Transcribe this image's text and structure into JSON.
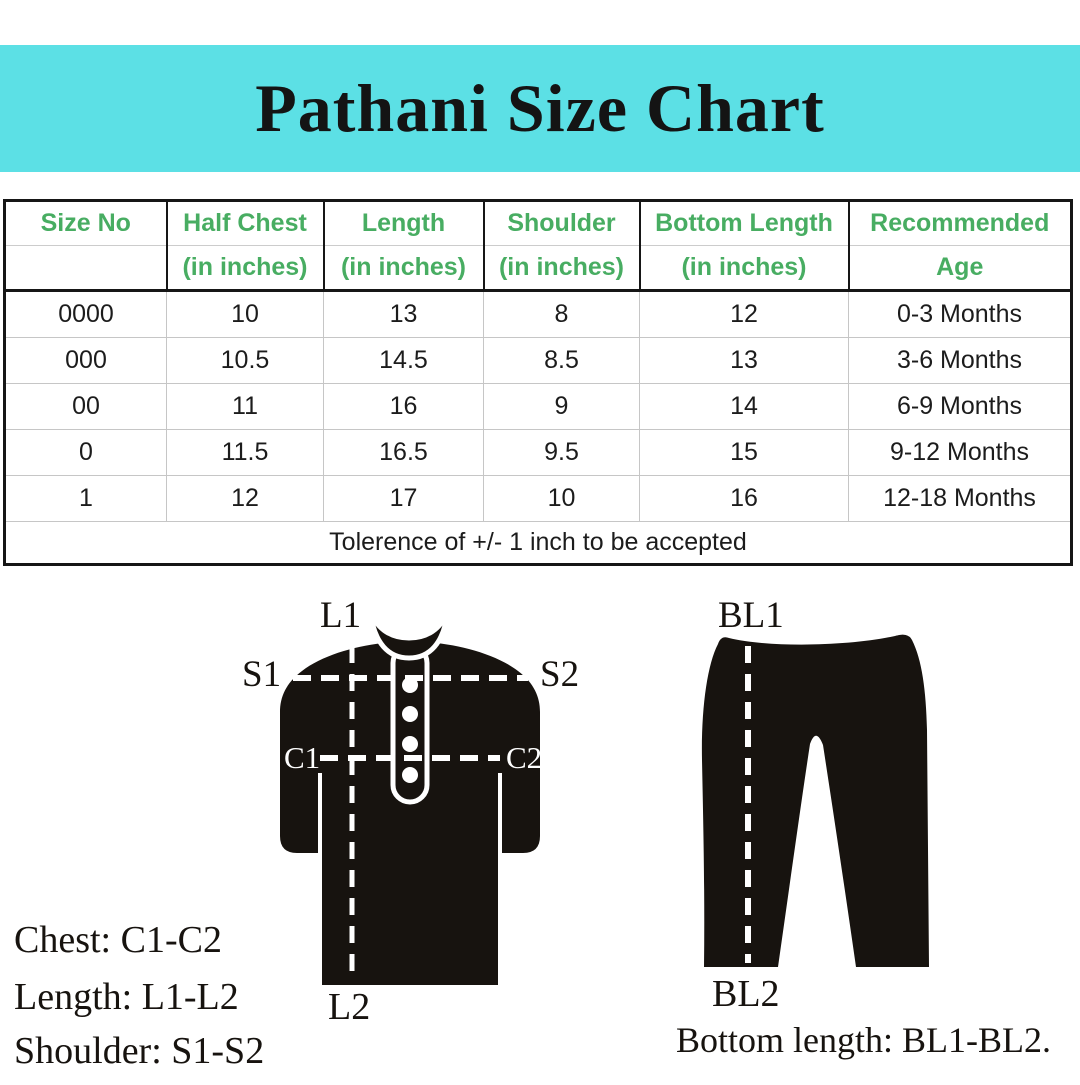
{
  "title": "Pathani Size Chart",
  "theme": {
    "banner_bg": "#5CE0E5",
    "header_text_color": "#48AD62",
    "garment_color": "#17130f",
    "table_dark_border": "#161616",
    "table_light_border": "#c6c6c6"
  },
  "table": {
    "columns": [
      {
        "line1": "Size No",
        "line2": ""
      },
      {
        "line1": "Half Chest",
        "line2": "(in inches)"
      },
      {
        "line1": "Length",
        "line2": "(in inches)"
      },
      {
        "line1": "Shoulder",
        "line2": "(in inches)"
      },
      {
        "line1": "Bottom Length",
        "line2": "(in inches)"
      },
      {
        "line1": "Recommended",
        "line2": "Age"
      }
    ],
    "rows": [
      [
        "0000",
        "10",
        "13",
        "8",
        "12",
        "0-3 Months"
      ],
      [
        "000",
        "10.5",
        "14.5",
        "8.5",
        "13",
        "3-6 Months"
      ],
      [
        "00",
        "11",
        "16",
        "9",
        "14",
        "6-9 Months"
      ],
      [
        "0",
        "11.5",
        "16.5",
        "9.5",
        "15",
        "9-12 Months"
      ],
      [
        "1",
        "12",
        "17",
        "10",
        "16",
        "12-18 Months"
      ]
    ],
    "tolerance_note": "Tolerence of +/- 1 inch to be accepted"
  },
  "diagram": {
    "kurta_labels": {
      "l1": "L1",
      "s1": "S1",
      "s2": "S2",
      "c1": "C1",
      "c2": "C2",
      "l2": "L2"
    },
    "pants_labels": {
      "bl1": "BL1",
      "bl2": "BL2"
    },
    "legend": {
      "chest": "Chest: C1-C2",
      "length": "Length: L1-L2",
      "shoulder": "Shoulder: S1-S2",
      "bottom_length": "Bottom length: BL1-BL2."
    }
  }
}
